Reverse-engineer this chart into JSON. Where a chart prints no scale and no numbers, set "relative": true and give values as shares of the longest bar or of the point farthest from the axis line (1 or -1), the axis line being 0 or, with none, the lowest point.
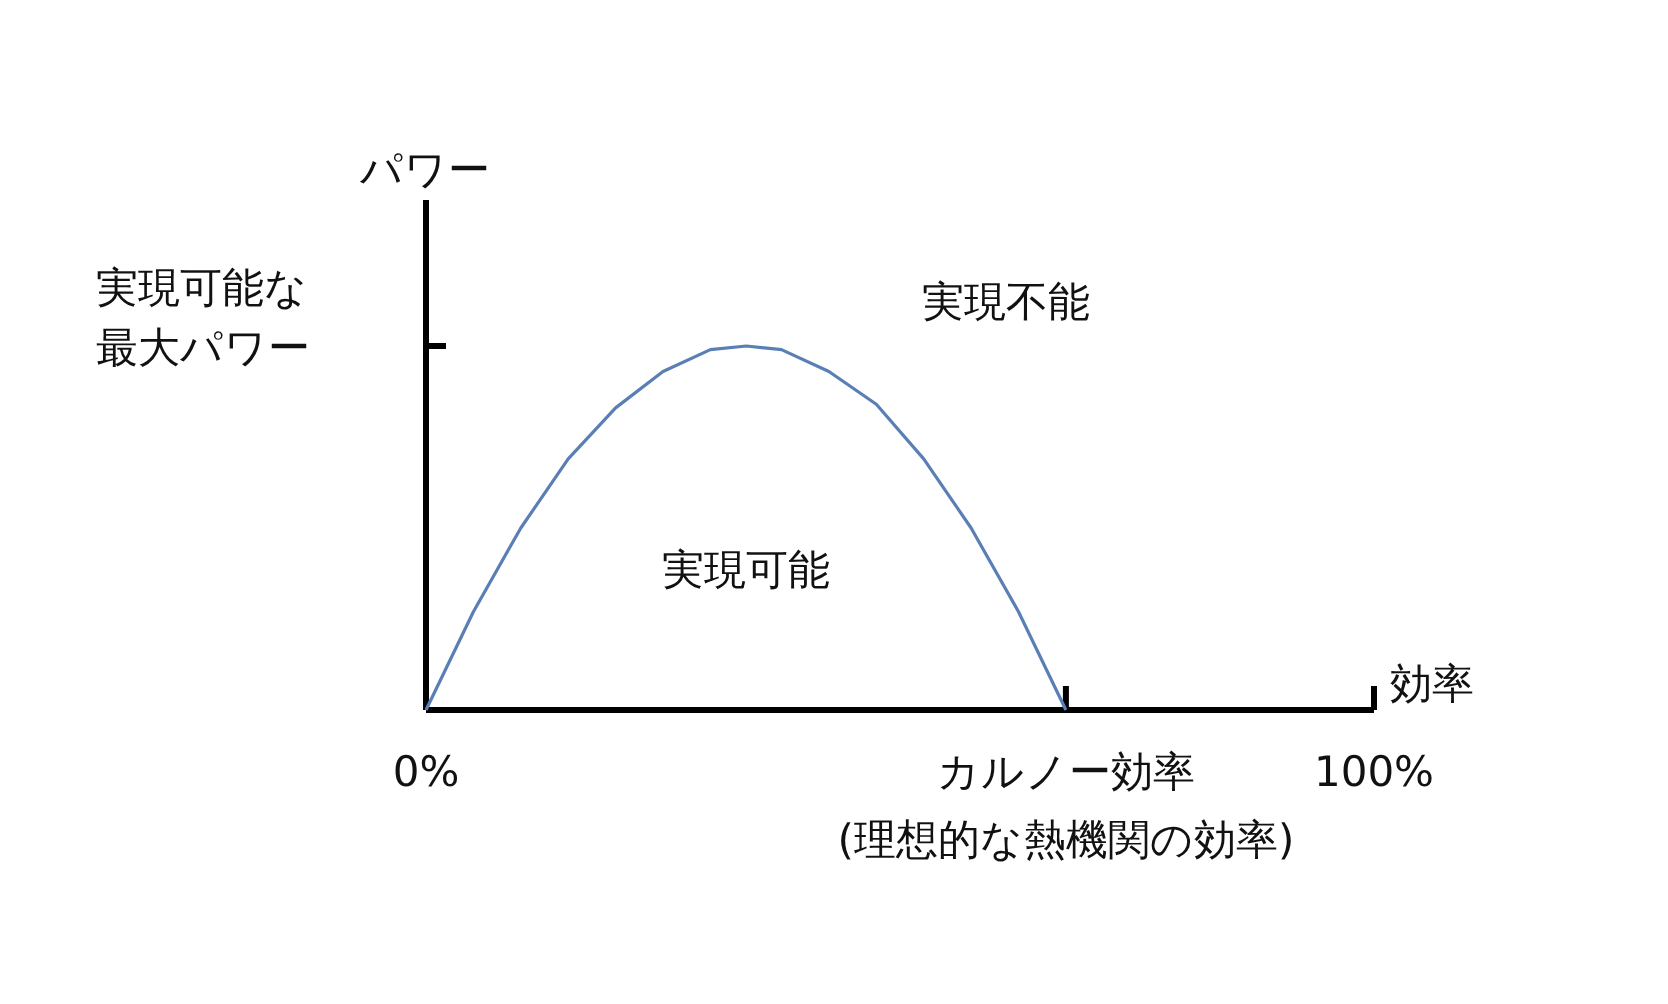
{
  "chart_data": {
    "type": "line",
    "relative": true,
    "xlabel": "効率",
    "ylabel": "パワー",
    "xlim": [
      0,
      100
    ],
    "xticks": [
      {
        "value": 0,
        "label": "0%"
      },
      {
        "value": 67.5,
        "label": "カルノー効率"
      },
      {
        "value": 100,
        "label": "100%"
      }
    ],
    "x": [
      0,
      5,
      10,
      15,
      20,
      25,
      30,
      33.8,
      37.5,
      42.5,
      47.5,
      52.5,
      57.5,
      62.5,
      67.5
    ],
    "series": [
      {
        "color": "#5a7fb5",
        "values": [
          0,
          0.27,
          0.5,
          0.69,
          0.83,
          0.93,
          0.99,
          1,
          0.99,
          0.93,
          0.84,
          0.69,
          0.5,
          0.27,
          0
        ]
      }
    ],
    "annotations": [
      "実現可能な最大パワー",
      "実現可能",
      "実現不能",
      "(理想的な熱機関の効率)"
    ]
  }
}
